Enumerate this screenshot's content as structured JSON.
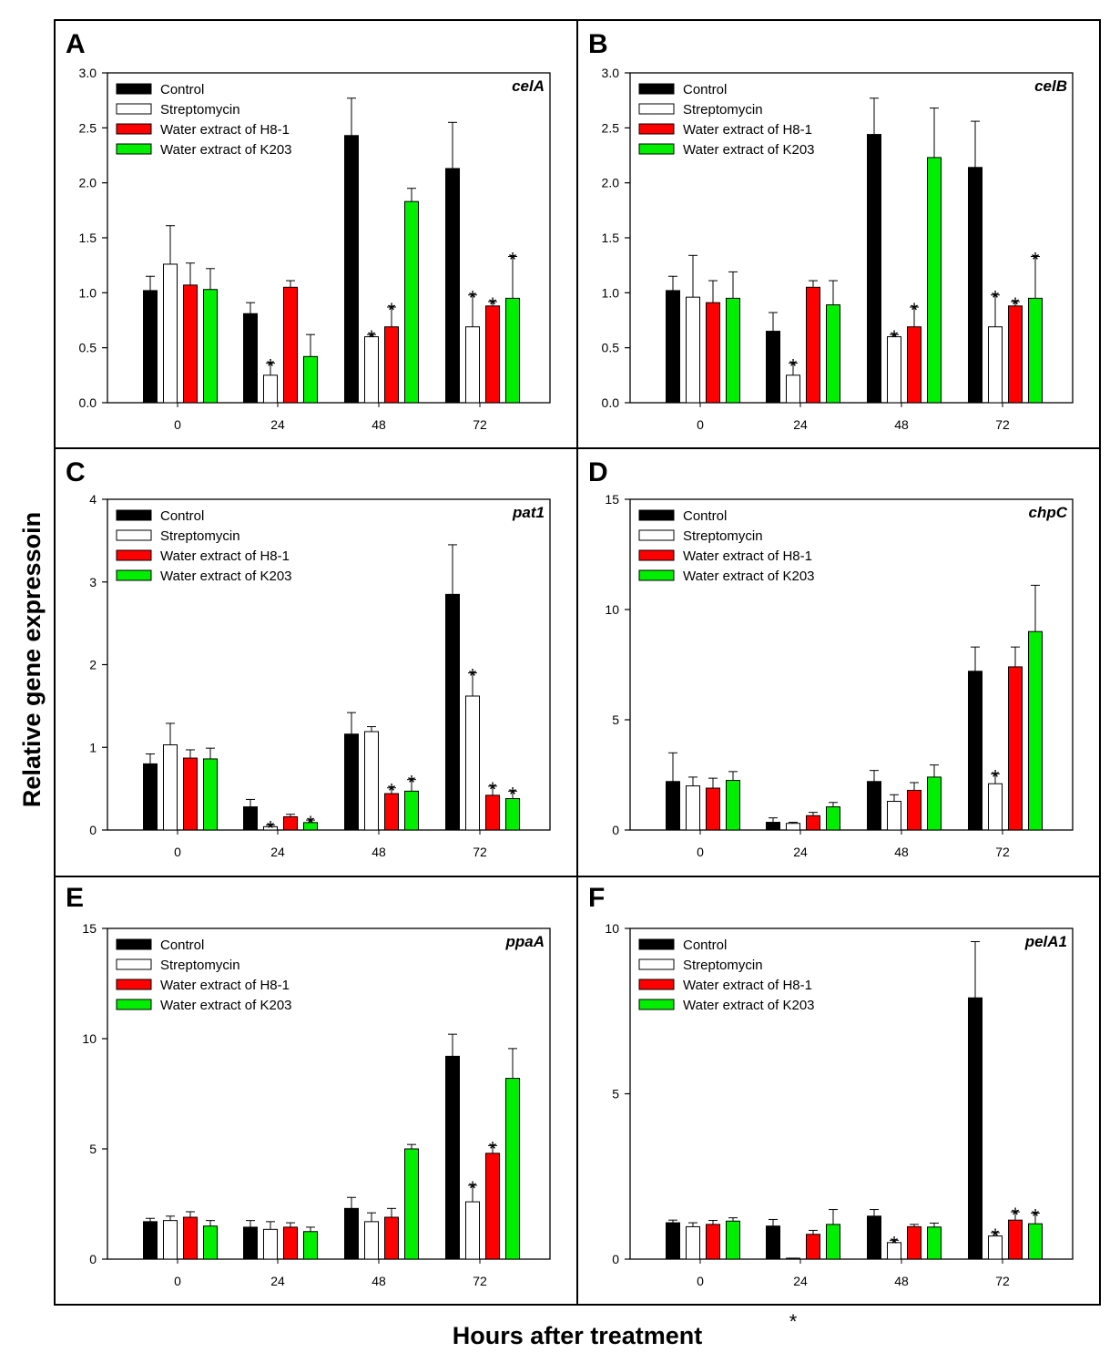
{
  "figure": {
    "ylabel": "Relative gene expressoin",
    "xlabel": "Hours after treatment",
    "legend": [
      {
        "name": "Control",
        "color": "#000000"
      },
      {
        "name": "Streptomycin",
        "color": "#ffffff"
      },
      {
        "name": "Water extract of H8-1",
        "color": "#ff0000"
      },
      {
        "name": "Water extract of K203",
        "color": "#00ee00"
      }
    ]
  },
  "chart_data": [
    {
      "type": "bar",
      "letter": "A",
      "title": "celA",
      "categories": [
        "0",
        "24",
        "48",
        "72"
      ],
      "ylim": [
        0,
        3.0
      ],
      "ticks": [
        0,
        0.5,
        1.0,
        1.5,
        2.0,
        2.5,
        3.0
      ],
      "tick_decimals": 1,
      "series": [
        {
          "name": "Control",
          "values": [
            1.02,
            0.81,
            2.43,
            2.13
          ],
          "errors": [
            0.13,
            0.1,
            0.34,
            0.42
          ],
          "sig": [
            false,
            false,
            false,
            false
          ]
        },
        {
          "name": "Streptomycin",
          "values": [
            1.26,
            0.25,
            0.6,
            0.69
          ],
          "errors": [
            0.35,
            0.11,
            0.02,
            0.29
          ],
          "sig": [
            false,
            true,
            true,
            true
          ]
        },
        {
          "name": "Water extract of H8-1",
          "values": [
            1.07,
            1.05,
            0.69,
            0.88
          ],
          "errors": [
            0.2,
            0.06,
            0.18,
            0.04
          ],
          "sig": [
            false,
            false,
            true,
            true
          ]
        },
        {
          "name": "Water extract of K203",
          "values": [
            1.03,
            0.42,
            1.83,
            0.95
          ],
          "errors": [
            0.19,
            0.2,
            0.12,
            0.38
          ],
          "sig": [
            false,
            false,
            false,
            true
          ]
        }
      ]
    },
    {
      "type": "bar",
      "letter": "B",
      "title": "celB",
      "categories": [
        "0",
        "24",
        "48",
        "72"
      ],
      "ylim": [
        0,
        3.0
      ],
      "ticks": [
        0,
        0.5,
        1.0,
        1.5,
        2.0,
        2.5,
        3.0
      ],
      "tick_decimals": 1,
      "series": [
        {
          "name": "Control",
          "values": [
            1.02,
            0.65,
            2.44,
            2.14
          ],
          "errors": [
            0.13,
            0.17,
            0.33,
            0.42
          ],
          "sig": [
            false,
            false,
            false,
            false
          ]
        },
        {
          "name": "Streptomycin",
          "values": [
            0.96,
            0.25,
            0.6,
            0.69
          ],
          "errors": [
            0.38,
            0.11,
            0.02,
            0.29
          ],
          "sig": [
            false,
            true,
            true,
            true
          ]
        },
        {
          "name": "Water extract of H8-1",
          "values": [
            0.91,
            1.05,
            0.69,
            0.88
          ],
          "errors": [
            0.2,
            0.06,
            0.18,
            0.04
          ],
          "sig": [
            false,
            false,
            true,
            true
          ]
        },
        {
          "name": "Water extract of K203",
          "values": [
            0.95,
            0.89,
            2.23,
            0.95
          ],
          "errors": [
            0.24,
            0.22,
            0.45,
            0.38
          ],
          "sig": [
            false,
            false,
            false,
            true
          ]
        }
      ]
    },
    {
      "type": "bar",
      "letter": "C",
      "title": "pat1",
      "categories": [
        "0",
        "24",
        "48",
        "72"
      ],
      "ylim": [
        0,
        4
      ],
      "ticks": [
        0,
        1,
        2,
        3,
        4
      ],
      "tick_decimals": 0,
      "series": [
        {
          "name": "Control",
          "values": [
            0.8,
            0.28,
            1.16,
            2.85
          ],
          "errors": [
            0.12,
            0.09,
            0.26,
            0.6
          ],
          "sig": [
            false,
            false,
            false,
            false
          ]
        },
        {
          "name": "Streptomycin",
          "values": [
            1.03,
            0.04,
            1.19,
            1.62
          ],
          "errors": [
            0.26,
            0.02,
            0.06,
            0.28
          ],
          "sig": [
            false,
            true,
            false,
            true
          ]
        },
        {
          "name": "Water extract of H8-1",
          "values": [
            0.87,
            0.16,
            0.44,
            0.42
          ],
          "errors": [
            0.1,
            0.03,
            0.07,
            0.11
          ],
          "sig": [
            false,
            false,
            true,
            true
          ]
        },
        {
          "name": "Water extract of K203",
          "values": [
            0.86,
            0.09,
            0.47,
            0.38
          ],
          "errors": [
            0.13,
            0.03,
            0.14,
            0.09
          ],
          "sig": [
            false,
            true,
            true,
            true
          ]
        }
      ]
    },
    {
      "type": "bar",
      "letter": "D",
      "title": "chpC",
      "categories": [
        "0",
        "24",
        "48",
        "72"
      ],
      "ylim": [
        0,
        15
      ],
      "ticks": [
        0,
        5,
        10,
        15
      ],
      "tick_decimals": 0,
      "series": [
        {
          "name": "Control",
          "values": [
            2.2,
            0.35,
            2.2,
            7.2
          ],
          "errors": [
            1.3,
            0.2,
            0.5,
            1.1
          ],
          "sig": [
            false,
            false,
            false,
            false
          ]
        },
        {
          "name": "Streptomycin",
          "values": [
            2.0,
            0.3,
            1.3,
            2.1
          ],
          "errors": [
            0.4,
            0.05,
            0.3,
            0.45
          ],
          "sig": [
            false,
            false,
            false,
            true
          ]
        },
        {
          "name": "Water extract of H8-1",
          "values": [
            1.9,
            0.65,
            1.8,
            7.4
          ],
          "errors": [
            0.45,
            0.15,
            0.35,
            0.9
          ],
          "sig": [
            false,
            false,
            false,
            false
          ]
        },
        {
          "name": "Water extract of K203",
          "values": [
            2.25,
            1.05,
            2.4,
            9.0
          ],
          "errors": [
            0.4,
            0.2,
            0.55,
            2.1
          ],
          "sig": [
            false,
            false,
            false,
            false
          ]
        }
      ]
    },
    {
      "type": "bar",
      "letter": "E",
      "title": "ppaA",
      "categories": [
        "0",
        "24",
        "48",
        "72"
      ],
      "ylim": [
        0,
        15
      ],
      "ticks": [
        0,
        5,
        10,
        15
      ],
      "tick_decimals": 0,
      "series": [
        {
          "name": "Control",
          "values": [
            1.7,
            1.45,
            2.3,
            9.2
          ],
          "errors": [
            0.15,
            0.3,
            0.5,
            1.0
          ],
          "sig": [
            false,
            false,
            false,
            false
          ]
        },
        {
          "name": "Streptomycin",
          "values": [
            1.75,
            1.35,
            1.7,
            2.6
          ],
          "errors": [
            0.2,
            0.35,
            0.4,
            0.75
          ],
          "sig": [
            false,
            false,
            false,
            true
          ]
        },
        {
          "name": "Water extract of H8-1",
          "values": [
            1.9,
            1.45,
            1.9,
            4.8
          ],
          "errors": [
            0.25,
            0.2,
            0.4,
            0.35
          ],
          "sig": [
            false,
            false,
            false,
            true
          ]
        },
        {
          "name": "Water extract of K203",
          "values": [
            1.5,
            1.25,
            5.0,
            8.2
          ],
          "errors": [
            0.25,
            0.2,
            0.2,
            1.35
          ],
          "sig": [
            false,
            false,
            false,
            false
          ]
        }
      ]
    },
    {
      "type": "bar",
      "letter": "F",
      "title": "pelA1",
      "categories": [
        "0",
        "24",
        "48",
        "72"
      ],
      "ylim": [
        0,
        10
      ],
      "ticks": [
        0,
        5,
        10
      ],
      "tick_decimals": 0,
      "series": [
        {
          "name": "Control",
          "values": [
            1.1,
            1.0,
            1.3,
            7.9
          ],
          "errors": [
            0.08,
            0.2,
            0.2,
            1.7
          ],
          "sig": [
            false,
            false,
            false,
            false
          ]
        },
        {
          "name": "Streptomycin",
          "values": [
            0.98,
            0.02,
            0.5,
            0.7
          ],
          "errors": [
            0.12,
            0.01,
            0.07,
            0.1
          ],
          "sig": [
            false,
            true,
            true,
            true
          ]
        },
        {
          "name": "Water extract of H8-1",
          "values": [
            1.05,
            0.75,
            0.98,
            1.18
          ],
          "errors": [
            0.12,
            0.12,
            0.07,
            0.25
          ],
          "sig": [
            false,
            false,
            false,
            true
          ]
        },
        {
          "name": "Water extract of K203",
          "values": [
            1.15,
            1.05,
            0.97,
            1.07
          ],
          "errors": [
            0.1,
            0.45,
            0.12,
            0.32
          ],
          "sig": [
            false,
            false,
            false,
            true
          ]
        }
      ]
    }
  ]
}
